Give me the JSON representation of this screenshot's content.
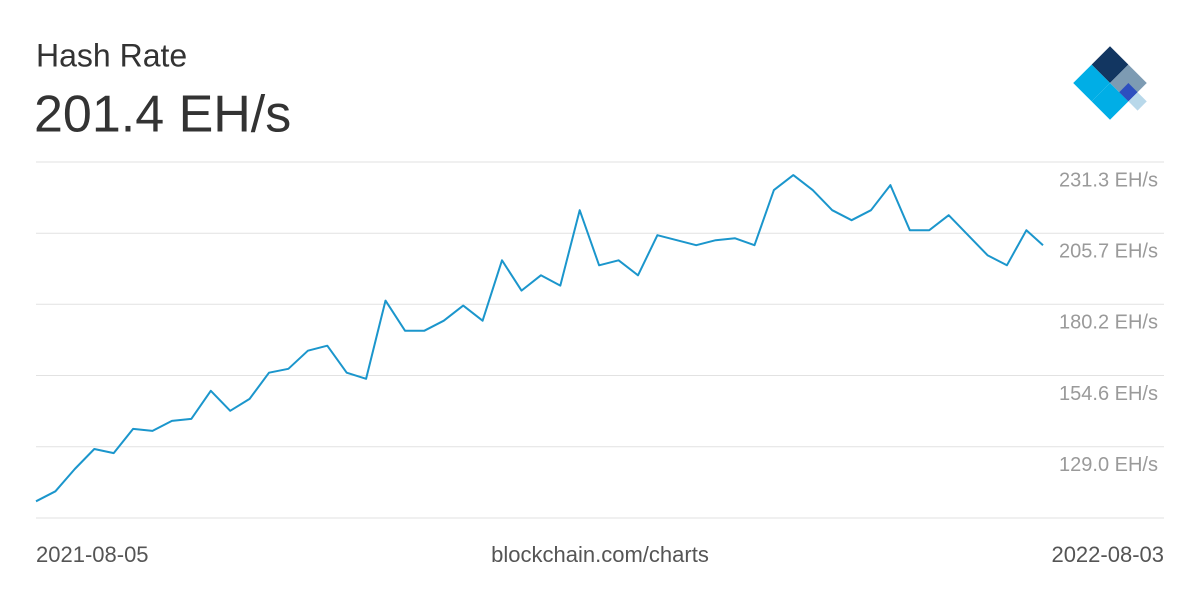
{
  "chart_data": {
    "type": "line",
    "title": "Hash Rate",
    "subtitle": "201.4 EH/s",
    "source": "blockchain.com/charts",
    "color": "#1b96cc",
    "x": [
      "2021-08-05",
      "2021-08-12",
      "2021-08-19",
      "2021-08-26",
      "2021-09-02",
      "2021-09-09",
      "2021-09-16",
      "2021-09-23",
      "2021-09-30",
      "2021-10-07",
      "2021-10-14",
      "2021-10-21",
      "2021-10-28",
      "2021-11-04",
      "2021-11-11",
      "2021-11-18",
      "2021-11-25",
      "2021-12-02",
      "2021-12-09",
      "2021-12-16",
      "2021-12-23",
      "2021-12-30",
      "2022-01-06",
      "2022-01-13",
      "2022-01-20",
      "2022-01-27",
      "2022-02-03",
      "2022-02-10",
      "2022-02-17",
      "2022-02-24",
      "2022-03-03",
      "2022-03-10",
      "2022-03-17",
      "2022-03-24",
      "2022-03-31",
      "2022-04-07",
      "2022-04-14",
      "2022-04-21",
      "2022-04-28",
      "2022-05-05",
      "2022-05-12",
      "2022-05-19",
      "2022-05-26",
      "2022-06-02",
      "2022-06-09",
      "2022-06-16",
      "2022-06-23",
      "2022-06-30",
      "2022-07-07",
      "2022-07-14",
      "2022-07-21",
      "2022-07-28",
      "2022-08-03"
    ],
    "values": [
      109.4,
      113.0,
      121.0,
      128.2,
      126.7,
      135.4,
      134.7,
      138.3,
      139.0,
      149.1,
      141.9,
      146.2,
      155.6,
      157.0,
      163.5,
      165.3,
      155.6,
      153.4,
      181.5,
      170.7,
      170.7,
      174.3,
      179.7,
      174.3,
      196.0,
      185.1,
      190.6,
      186.9,
      214.0,
      194.2,
      196.0,
      190.6,
      205.0,
      203.2,
      201.4,
      203.2,
      203.9,
      201.4,
      221.2,
      226.6,
      221.2,
      214.0,
      210.4,
      214.0,
      223.0,
      206.8,
      206.8,
      212.2,
      205.0,
      197.8,
      194.2,
      206.8,
      201.4
    ],
    "xlim": [
      "2021-08-05",
      "2022-08-03"
    ],
    "ylim": [
      103.4,
      231.3
    ],
    "yticks": [
      {
        "value": 129.0,
        "label": "129.0 EH/s"
      },
      {
        "value": 154.6,
        "label": "154.6 EH/s"
      },
      {
        "value": 180.2,
        "label": "180.2 EH/s"
      },
      {
        "value": 205.7,
        "label": "205.7 EH/s"
      },
      {
        "value": 231.3,
        "label": "231.3 EH/s"
      }
    ],
    "grid": true
  }
}
